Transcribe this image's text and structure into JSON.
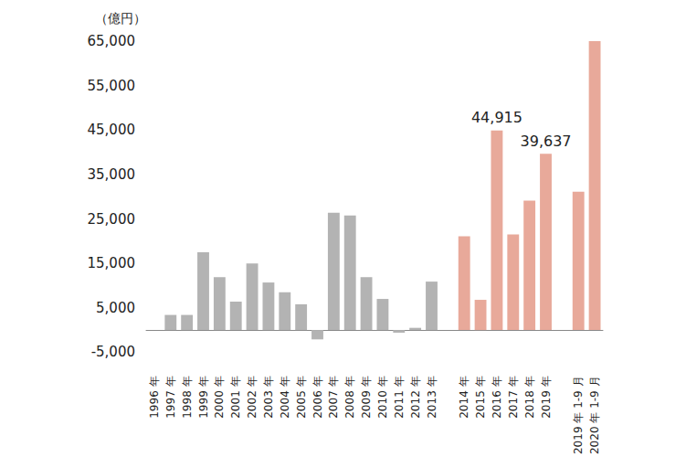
{
  "chart_data": {
    "type": "bar",
    "y_label": "（億円）",
    "categories": [
      "1996 年",
      "1997 年",
      "1998 年",
      "1999 年",
      "2000 年",
      "2001 年",
      "2002 年",
      "2003 年",
      "2004 年",
      "2005 年",
      "2006 年",
      "2007 年",
      "2008 年",
      "2009 年",
      "2010 年",
      "2011 年",
      "2012 年",
      "2013 年",
      null,
      "2014 年",
      "2015 年",
      "2016 年",
      "2017 年",
      "2018 年",
      "2019 年",
      null,
      "2019 年 1-9 月",
      "2020 年 1-9 月"
    ],
    "values": [
      0,
      3400,
      3400,
      17500,
      11900,
      6400,
      15000,
      10700,
      8500,
      5800,
      -2100,
      26400,
      25800,
      11900,
      7000,
      -600,
      500,
      10900,
      null,
      21100,
      6800,
      44915,
      21500,
      29100,
      39637,
      null,
      31100,
      65000
    ],
    "value_labels": [
      null,
      null,
      null,
      null,
      null,
      null,
      null,
      null,
      null,
      null,
      null,
      null,
      null,
      null,
      null,
      null,
      null,
      null,
      null,
      null,
      null,
      "44,915",
      null,
      null,
      "39,637",
      null,
      null,
      null
    ],
    "data_labels": true,
    "colors": [
      "#b3b3b3",
      "#b3b3b3",
      "#b3b3b3",
      "#b3b3b3",
      "#b3b3b3",
      "#b3b3b3",
      "#b3b3b3",
      "#b3b3b3",
      "#b3b3b3",
      "#b3b3b3",
      "#b3b3b3",
      "#b3b3b3",
      "#b3b3b3",
      "#b3b3b3",
      "#b3b3b3",
      "#b3b3b3",
      "#b3b3b3",
      "#b3b3b3",
      null,
      "#e8a99a",
      "#e8a99a",
      "#e8a99a",
      "#e8a99a",
      "#e8a99a",
      "#e8a99a",
      null,
      "#e8a99a",
      "#e8a99a"
    ],
    "ylim": [
      -5000,
      65000
    ],
    "yticks": [
      {
        "value": -5000,
        "label": "-5,000"
      },
      {
        "value": 5000,
        "label": "5,000"
      },
      {
        "value": 15000,
        "label": "15,000"
      },
      {
        "value": 25000,
        "label": "25,000"
      },
      {
        "value": 35000,
        "label": "35,000"
      },
      {
        "value": 45000,
        "label": "45,000"
      },
      {
        "value": 55000,
        "label": "55,000"
      },
      {
        "value": 65000,
        "label": "65,000"
      }
    ],
    "grid": false
  }
}
